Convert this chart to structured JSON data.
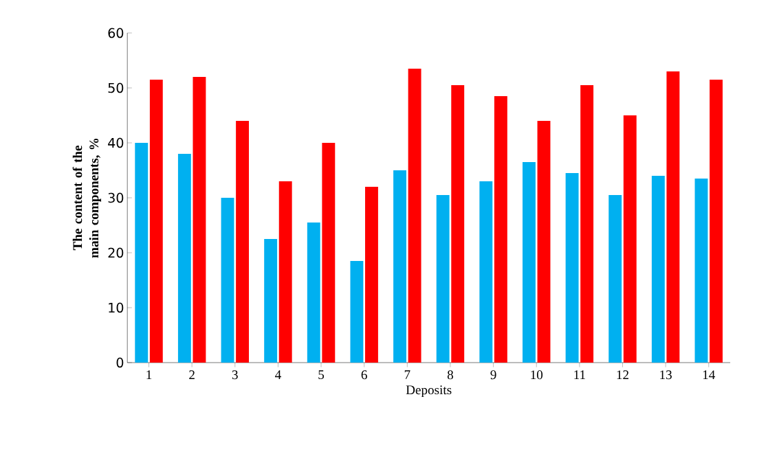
{
  "chart_data": {
    "type": "bar",
    "xlabel": "Deposits",
    "ylabel": "The content of the main components, %",
    "categories": [
      "1",
      "2",
      "3",
      "4",
      "5",
      "6",
      "7",
      "8",
      "9",
      "10",
      "11",
      "12",
      "13",
      "14"
    ],
    "series": [
      {
        "color": "#00b0f0",
        "values": [
          40,
          38,
          30,
          22.5,
          25.5,
          18.5,
          35,
          30.5,
          33,
          36.5,
          34.5,
          30.5,
          34,
          33.5
        ]
      },
      {
        "color": "#ff0000",
        "values": [
          51.5,
          52,
          44,
          33,
          40,
          32,
          53.5,
          50.5,
          48.5,
          44,
          50.5,
          45,
          53,
          51.5
        ]
      }
    ],
    "ylim": [
      0,
      60
    ],
    "yticks": [
      0,
      10,
      20,
      30,
      40,
      50,
      60
    ]
  }
}
